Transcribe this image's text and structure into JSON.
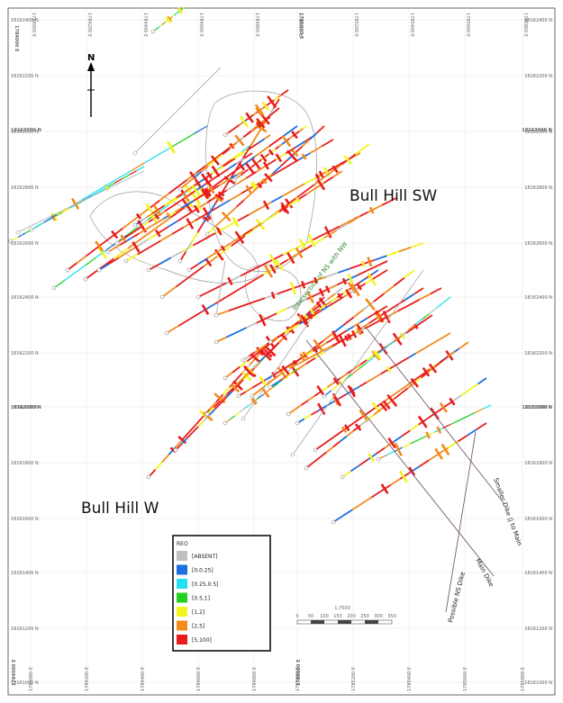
{
  "map": {
    "north_label": "N",
    "area_labels": [
      "Bull Hill SW",
      "Bull Hill W"
    ],
    "structure_labels": [
      "Smaller Dike || to Main",
      "Main Dike",
      "Possible NS Dike"
    ],
    "interpretation_label": "Intersection of NS with NW",
    "grid": {
      "easting_top": [
        "1784000 E",
        "1784200 E",
        "1784400 E",
        "1784600 E",
        "1784800 E",
        "1785000 E",
        "1785200 E",
        "1785400 E",
        "1785600 E",
        "1785800 E"
      ],
      "easting_bottom": [
        "1784000 E",
        "1784200 E",
        "1784400 E",
        "1784600 E",
        "1784800 E",
        "1785000 E",
        "1785200 E",
        "1785400 E",
        "1785600 E",
        "1785800 E"
      ],
      "northing_left": [
        "18162400 N",
        "18162200 N",
        "18162000 N",
        "18162800 N",
        "18162600 N",
        "18162400 N",
        "18162200 N",
        "18162000 N",
        "18161800 N",
        "18161600 N",
        "18161400 N",
        "18161200 N",
        "18161000 N"
      ],
      "northing_right": [
        "18162400 N",
        "18162200 N",
        "18162000 N",
        "18162800 N",
        "18162600 N",
        "18162400 N",
        "18162200 N",
        "18162000 N",
        "18161800 N",
        "18161600 N",
        "18161400 N",
        "18161200 N",
        "18161000 N"
      ],
      "easting_major": [
        "1784000 E",
        "1785000 E"
      ],
      "northing_major": [
        "18163000 N",
        "18162000 N"
      ]
    },
    "scale_bar": {
      "ratio": "1:7500",
      "ticks": [
        "0",
        "50",
        "100",
        "150",
        "200",
        "250",
        "300",
        "350"
      ]
    },
    "legend": {
      "title": "REO",
      "items": [
        {
          "label": "[ABSENT]",
          "color": "#c0c0c0"
        },
        {
          "label": "[0,0.25]",
          "color": "#1e6fe0"
        },
        {
          "label": "[0.25,0.5]",
          "color": "#22e0f0"
        },
        {
          "label": "[0.5,1]",
          "color": "#22d022"
        },
        {
          "label": "[1,2]",
          "color": "#f4f41e"
        },
        {
          "label": "[2,5]",
          "color": "#f28a1e"
        },
        {
          "label": "[5,100]",
          "color": "#e81c1c"
        }
      ]
    }
  }
}
